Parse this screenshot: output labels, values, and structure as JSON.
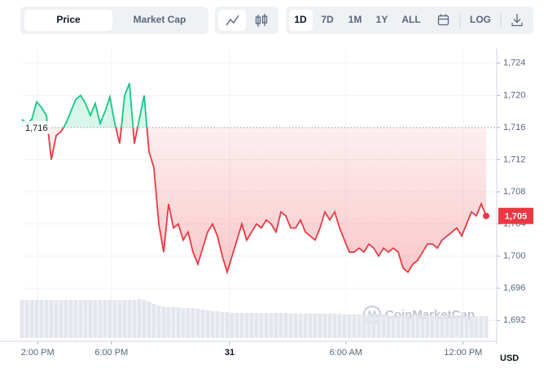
{
  "toolbar": {
    "tabs": [
      "Price",
      "Market Cap"
    ],
    "ranges": [
      "1D",
      "7D",
      "1M",
      "1Y",
      "ALL"
    ],
    "log": "LOG"
  },
  "watermark": "CoinMarketCap",
  "chart_data": {
    "type": "line",
    "values": [
      1717,
      1716.5,
      1717,
      1719.2,
      1718.5,
      1717.5,
      1712,
      1715,
      1715.5,
      1716.5,
      1718,
      1719.5,
      1720,
      1719,
      1717.5,
      1719,
      1716.5,
      1718,
      1719.8,
      1716.5,
      1714,
      1720,
      1721.5,
      1714,
      1717,
      1720,
      1713,
      1711,
      1704,
      1700.5,
      1706.5,
      1703.5,
      1704,
      1702,
      1703,
      1700.5,
      1699,
      1701,
      1703,
      1704,
      1702.5,
      1700,
      1698,
      1700,
      1702,
      1704,
      1702,
      1703,
      1704,
      1703.5,
      1704.5,
      1704,
      1703,
      1705.5,
      1705,
      1703.5,
      1703.5,
      1704.5,
      1703,
      1702.5,
      1702,
      1703.5,
      1705.5,
      1704.5,
      1705.5,
      1703.5,
      1702,
      1700.5,
      1700.5,
      1701,
      1700.5,
      1701.5,
      1701,
      1700,
      1701,
      1700.5,
      1701,
      1700.5,
      1698.5,
      1698,
      1699,
      1699.5,
      1700.5,
      1701.5,
      1701.5,
      1701,
      1702,
      1702.5,
      1703,
      1703.5,
      1702.5,
      1704,
      1705.5,
      1705,
      1706.5,
      1705
    ],
    "volume": [
      47,
      47,
      47,
      47,
      47,
      47,
      47,
      47,
      47,
      47,
      47,
      47,
      47,
      47,
      47,
      47,
      47,
      47,
      47,
      47,
      47,
      47,
      47,
      47,
      48,
      47,
      45,
      42,
      40,
      39,
      38,
      38,
      38,
      37,
      37,
      37,
      36,
      35,
      34,
      33,
      33,
      32,
      32,
      31,
      31,
      31,
      31,
      31,
      31,
      31,
      31,
      31,
      31,
      31,
      31,
      30,
      30,
      30,
      30,
      30,
      30,
      30,
      30,
      30,
      30,
      30,
      29,
      29,
      29,
      29,
      29,
      29,
      29,
      29,
      29,
      28,
      28,
      28,
      28,
      28,
      28,
      28,
      28,
      28,
      28,
      28,
      28,
      28,
      28,
      28,
      28,
      27,
      27,
      27,
      27,
      27
    ],
    "up_color": "#16c784",
    "down_color": "#ea3943",
    "baseline": 1716,
    "baseline_label": "1,716",
    "current_label": "1,705",
    "xlim": [
      0,
      95
    ],
    "xticks": [
      {
        "value": 3.2,
        "label": "2:00 PM"
      },
      {
        "value": 18.3,
        "label": "6:00 PM"
      },
      {
        "value": 42.5,
        "label": "31"
      },
      {
        "value": 66.3,
        "label": "6:00 AM"
      },
      {
        "value": 90.3,
        "label": "12:00 PM"
      }
    ],
    "ylim": [
      1689.4,
      1725.8
    ],
    "yticks": [
      {
        "value": 1692,
        "label": "1,692"
      },
      {
        "value": 1696,
        "label": "1,696"
      },
      {
        "value": 1700,
        "label": "1,700"
      },
      {
        "value": 1704,
        "label": "1,704"
      },
      {
        "value": 1708,
        "label": "1,708"
      },
      {
        "value": 1712,
        "label": "1,712"
      },
      {
        "value": 1716,
        "label": "1,716"
      },
      {
        "value": 1720,
        "label": "1,720"
      },
      {
        "value": 1724,
        "label": "1,724"
      }
    ],
    "y2lim": [
      0,
      60
    ],
    "y_unit": "USD",
    "grid": true
  }
}
